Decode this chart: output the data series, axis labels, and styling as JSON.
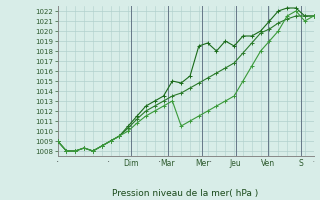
{
  "xlabel": "Pression niveau de la mer( hPa )",
  "ylim": [
    1007.5,
    1022.5
  ],
  "yticks": [
    1008,
    1009,
    1010,
    1011,
    1012,
    1013,
    1014,
    1015,
    1016,
    1017,
    1018,
    1019,
    1020,
    1021,
    1022
  ],
  "day_labels": [
    "Dim",
    "Mar",
    "Mer",
    "Jeu",
    "Ven",
    "S"
  ],
  "background_color": "#d8ede8",
  "grid_color": "#b0d0cc",
  "line_color1": "#1a6b1a",
  "line_color2": "#2a7a2a",
  "line_color3": "#3a9a3a",
  "series1": [
    1009.0,
    1008.0,
    1008.0,
    1008.3,
    1008.0,
    1008.5,
    1009.0,
    1009.5,
    1010.5,
    1011.5,
    1012.5,
    1013.0,
    1013.5,
    1015.0,
    1014.8,
    1015.5,
    1018.5,
    1018.8,
    1018.0,
    1019.0,
    1018.5,
    1019.5,
    1019.5,
    1020.0,
    1021.0,
    1022.0,
    1022.3,
    1022.3,
    1021.5,
    1021.5
  ],
  "series2": [
    1009.0,
    1008.0,
    1008.0,
    1008.3,
    1008.0,
    1008.5,
    1009.0,
    1009.5,
    1010.3,
    1011.2,
    1012.0,
    1012.5,
    1013.0,
    1013.5,
    1013.8,
    1014.3,
    1014.8,
    1015.3,
    1015.8,
    1016.3,
    1016.8,
    1017.8,
    1018.8,
    1019.8,
    1020.2,
    1020.8,
    1021.2,
    1021.5,
    1021.5,
    1021.5
  ],
  "series3": [
    1009.0,
    1008.0,
    1008.0,
    1008.3,
    1008.0,
    1008.5,
    1009.0,
    1009.5,
    1010.0,
    1010.8,
    1011.5,
    1012.0,
    1012.5,
    1013.0,
    1010.5,
    1011.0,
    1011.5,
    1012.0,
    1012.5,
    1013.0,
    1013.5,
    1015.0,
    1016.5,
    1018.0,
    1019.0,
    1020.0,
    1021.5,
    1022.0,
    1021.0,
    1021.5
  ],
  "n_points": 30,
  "day_x_fracs": [
    0.285,
    0.43,
    0.565,
    0.695,
    0.82,
    0.95
  ]
}
